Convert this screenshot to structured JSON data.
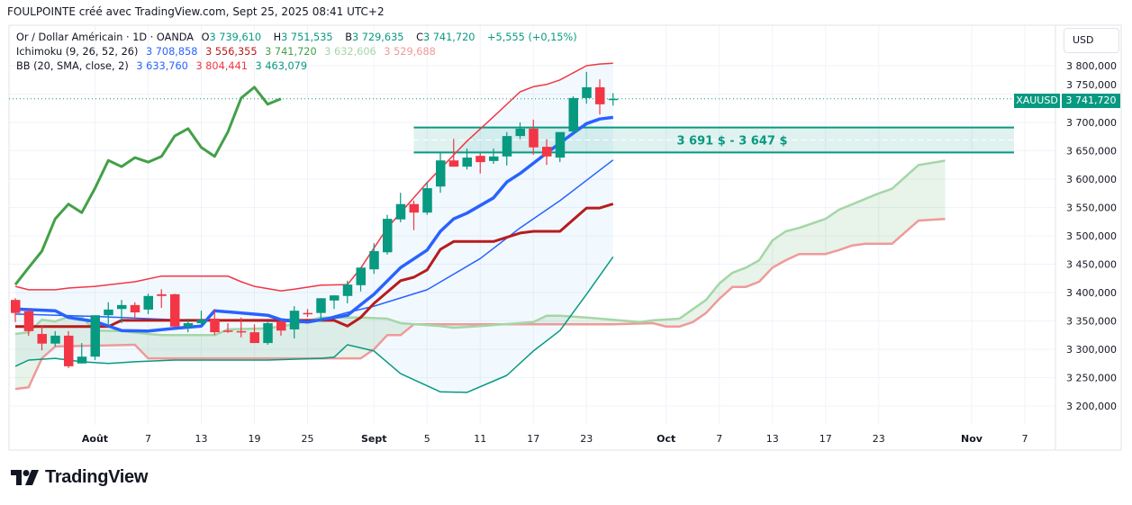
{
  "header": {
    "title": "FOULPOINTE créé avec TradingView.com, Sept 25, 2025 08:41 UTC+2"
  },
  "legend": {
    "symbol": "Or / Dollar Américain · 1D · OANDA",
    "open_label": "O",
    "open": "3 739,610",
    "high_label": "H",
    "high": "3 751,535",
    "low_label": "B",
    "low": "3 729,635",
    "close_label": "C",
    "close": "3 741,720",
    "change": "+5,555 (+0,15%)",
    "ichimoku": {
      "name": "Ichimoku (9, 26, 52, 26)",
      "values": [
        "3 708,858",
        "3 556,355",
        "3 741,720",
        "3 632,606",
        "3 529,688"
      ]
    },
    "bb": {
      "name": "BB (20, SMA, close, 2)",
      "values": [
        "3 633,760",
        "3 804,441",
        "3 463,079"
      ]
    }
  },
  "price_axis": {
    "currency_button": "USD",
    "labels": [
      "3 800,000",
      "3 750,000",
      "3 700,000",
      "3 650,000",
      "3 600,000",
      "3 550,000",
      "3 500,000",
      "3 450,000",
      "3 400,000",
      "3 350,000",
      "3 300,000",
      "3 250,000",
      "3 200,000"
    ],
    "symbol_tag": "XAUUSD",
    "last_price": "3 741,720"
  },
  "zone": {
    "label": "3 691 $ - 3 647 $",
    "top": 3691,
    "bottom": 3647,
    "start": "2025-09-04"
  },
  "footer": {
    "logo": "TradingView"
  },
  "colors": {
    "up": "#089981",
    "down": "#f23645",
    "tenkan": "#2962ff",
    "kijun": "#b71c1c",
    "chikou": "#43a047",
    "span_a": "#a5d6a7",
    "span_b": "#ef9a9a",
    "bb_upper": "#f23645",
    "bb_basis": "#2962ff",
    "bb_lower": "#089981",
    "zone": "#089981"
  },
  "chart_data": {
    "type": "candlestick",
    "symbol": "XAUUSD",
    "interval": "1D",
    "ylim": [
      3175,
      3830
    ],
    "yticks": [
      3800,
      3750,
      3700,
      3650,
      3600,
      3550,
      3500,
      3450,
      3400,
      3350,
      3300,
      3250,
      3200
    ],
    "last_price": 3741.72,
    "xticks": [
      {
        "date": "2025-08-01",
        "label": "Août",
        "month": true
      },
      {
        "date": "2025-08-07",
        "label": "7"
      },
      {
        "date": "2025-08-13",
        "label": "13"
      },
      {
        "date": "2025-08-19",
        "label": "19"
      },
      {
        "date": "2025-08-25",
        "label": "25"
      },
      {
        "date": "2025-09-01",
        "label": "Sept",
        "month": true
      },
      {
        "date": "2025-09-05",
        "label": "5"
      },
      {
        "date": "2025-09-11",
        "label": "11"
      },
      {
        "date": "2025-09-17",
        "label": "17"
      },
      {
        "date": "2025-09-23",
        "label": "23"
      },
      {
        "date": "2025-10-01",
        "label": "Oct",
        "month": true
      },
      {
        "date": "2025-10-07",
        "label": "7"
      },
      {
        "date": "2025-10-13",
        "label": "13"
      },
      {
        "date": "2025-10-17",
        "label": "17"
      },
      {
        "date": "2025-10-23",
        "label": "23"
      },
      {
        "date": "2025-11-03",
        "label": "Nov",
        "month": true
      },
      {
        "date": "2025-11-07",
        "label": "7"
      }
    ],
    "candles": [
      [
        "2025-07-24",
        3387,
        3390,
        3348,
        3364
      ],
      [
        "2025-07-25",
        3367,
        3371,
        3324,
        3332
      ],
      [
        "2025-07-28",
        3327,
        3341,
        3298,
        3310
      ],
      [
        "2025-07-29",
        3310,
        3332,
        3305,
        3324
      ],
      [
        "2025-07-30",
        3324,
        3332,
        3267,
        3270
      ],
      [
        "2025-07-31",
        3275,
        3311,
        3275,
        3287
      ],
      [
        "2025-08-01",
        3287,
        3360,
        3281,
        3360
      ],
      [
        "2025-08-04",
        3360,
        3383,
        3341,
        3370
      ],
      [
        "2025-08-05",
        3371,
        3387,
        3346,
        3378
      ],
      [
        "2025-08-06",
        3378,
        3383,
        3356,
        3365
      ],
      [
        "2025-08-07",
        3370,
        3398,
        3362,
        3394
      ],
      [
        "2025-08-08",
        3397,
        3406,
        3373,
        3394
      ],
      [
        "2025-08-11",
        3397,
        3398,
        3340,
        3340
      ],
      [
        "2025-08-12",
        3340,
        3354,
        3330,
        3346
      ],
      [
        "2025-08-13",
        3346,
        3368,
        3344,
        3352
      ],
      [
        "2025-08-14",
        3354,
        3371,
        3325,
        3330
      ],
      [
        "2025-08-15",
        3333,
        3346,
        3329,
        3332
      ],
      [
        "2025-08-18",
        3332,
        3356,
        3321,
        3330
      ],
      [
        "2025-08-19",
        3330,
        3344,
        3311,
        3311
      ],
      [
        "2025-08-20",
        3311,
        3348,
        3308,
        3346
      ],
      [
        "2025-08-21",
        3349,
        3351,
        3324,
        3333
      ],
      [
        "2025-08-22",
        3335,
        3376,
        3319,
        3368
      ],
      [
        "2025-08-25",
        3364,
        3371,
        3357,
        3362
      ],
      [
        "2025-08-26",
        3364,
        3390,
        3349,
        3390
      ],
      [
        "2025-08-27",
        3386,
        3395,
        3371,
        3395
      ],
      [
        "2025-08-28",
        3394,
        3421,
        3381,
        3414
      ],
      [
        "2025-08-29",
        3413,
        3444,
        3402,
        3444
      ],
      [
        "2025-09-01",
        3441,
        3487,
        3433,
        3473
      ],
      [
        "2025-09-02",
        3471,
        3537,
        3467,
        3530
      ],
      [
        "2025-09-03",
        3529,
        3576,
        3524,
        3556
      ],
      [
        "2025-09-04",
        3556,
        3562,
        3510,
        3541
      ],
      [
        "2025-09-05",
        3541,
        3595,
        3537,
        3584
      ],
      [
        "2025-09-08",
        3587,
        3646,
        3576,
        3633
      ],
      [
        "2025-09-09",
        3633,
        3671,
        3622,
        3622
      ],
      [
        "2025-09-10",
        3622,
        3654,
        3617,
        3638
      ],
      [
        "2025-09-11",
        3641,
        3646,
        3610,
        3630
      ],
      [
        "2025-09-12",
        3632,
        3654,
        3627,
        3640
      ],
      [
        "2025-09-15",
        3640,
        3683,
        3624,
        3676
      ],
      [
        "2025-09-16",
        3676,
        3700,
        3671,
        3689
      ],
      [
        "2025-09-17",
        3689,
        3705,
        3643,
        3656
      ],
      [
        "2025-09-18",
        3657,
        3670,
        3625,
        3640
      ],
      [
        "2025-09-19",
        3638,
        3683,
        3630,
        3683
      ],
      [
        "2025-09-22",
        3684,
        3746,
        3681,
        3743
      ],
      [
        "2025-09-23",
        3743,
        3789,
        3733,
        3762
      ],
      [
        "2025-09-24",
        3762,
        3776,
        3714,
        3732
      ],
      [
        "2025-09-25",
        3739.61,
        3751.535,
        3729.635,
        3741.72
      ]
    ],
    "bb_upper": [
      [
        "2025-07-24",
        3411
      ],
      [
        "2025-07-25",
        3405
      ],
      [
        "2025-07-29",
        3405
      ],
      [
        "2025-07-30",
        3408
      ],
      [
        "2025-08-01",
        3411
      ],
      [
        "2025-08-06",
        3419
      ],
      [
        "2025-08-08",
        3429
      ],
      [
        "2025-08-15",
        3429
      ],
      [
        "2025-08-18",
        3419
      ],
      [
        "2025-08-19",
        3411
      ],
      [
        "2025-08-21",
        3403
      ],
      [
        "2025-08-22",
        3406
      ],
      [
        "2025-08-26",
        3413
      ],
      [
        "2025-08-28",
        3414
      ],
      [
        "2025-08-29",
        3443
      ],
      [
        "2025-09-02",
        3514
      ],
      [
        "2025-09-05",
        3594
      ],
      [
        "2025-09-10",
        3667
      ],
      [
        "2025-09-12",
        3710
      ],
      [
        "2025-09-16",
        3754
      ],
      [
        "2025-09-17",
        3763
      ],
      [
        "2025-09-18",
        3767
      ],
      [
        "2025-09-19",
        3775
      ],
      [
        "2025-09-23",
        3800
      ],
      [
        "2025-09-24",
        3803
      ],
      [
        "2025-09-25",
        3804.441
      ]
    ],
    "bb_basis": [
      [
        "2025-07-24",
        3362
      ],
      [
        "2025-08-01",
        3358
      ],
      [
        "2025-08-11",
        3352
      ],
      [
        "2025-08-19",
        3350
      ],
      [
        "2025-08-25",
        3348
      ],
      [
        "2025-08-26",
        3352
      ],
      [
        "2025-08-28",
        3365
      ],
      [
        "2025-09-01",
        3376
      ],
      [
        "2025-09-05",
        3405
      ],
      [
        "2025-09-11",
        3460
      ],
      [
        "2025-09-16",
        3514
      ],
      [
        "2025-09-19",
        3562
      ],
      [
        "2025-09-25",
        3633.76
      ]
    ],
    "bb_lower": [
      [
        "2025-07-24",
        3270
      ],
      [
        "2025-07-25",
        3281
      ],
      [
        "2025-07-29",
        3284
      ],
      [
        "2025-07-31",
        3278
      ],
      [
        "2025-08-04",
        3275
      ],
      [
        "2025-08-06",
        3278
      ],
      [
        "2025-08-11",
        3281
      ],
      [
        "2025-08-20",
        3281
      ],
      [
        "2025-08-26",
        3284
      ],
      [
        "2025-08-27",
        3286
      ],
      [
        "2025-08-28",
        3308
      ],
      [
        "2025-09-01",
        3297
      ],
      [
        "2025-09-03",
        3257
      ],
      [
        "2025-09-08",
        3225
      ],
      [
        "2025-09-10",
        3224
      ],
      [
        "2025-09-15",
        3254
      ],
      [
        "2025-09-17",
        3297
      ],
      [
        "2025-09-19",
        3333
      ],
      [
        "2025-09-23",
        3397
      ],
      [
        "2025-09-25",
        3463.079
      ]
    ],
    "tenkan": [
      [
        "2025-07-24",
        3371
      ],
      [
        "2025-07-29",
        3368
      ],
      [
        "2025-07-30",
        3356
      ],
      [
        "2025-08-01",
        3349
      ],
      [
        "2025-08-05",
        3333
      ],
      [
        "2025-08-07",
        3332
      ],
      [
        "2025-08-11",
        3337
      ],
      [
        "2025-08-13",
        3341
      ],
      [
        "2025-08-14",
        3368
      ],
      [
        "2025-08-20",
        3360
      ],
      [
        "2025-08-21",
        3352
      ],
      [
        "2025-08-25",
        3348
      ],
      [
        "2025-08-26",
        3352
      ],
      [
        "2025-08-28",
        3360
      ],
      [
        "2025-09-01",
        3397
      ],
      [
        "2025-09-03",
        3444
      ],
      [
        "2025-09-05",
        3475
      ],
      [
        "2025-09-08",
        3508
      ],
      [
        "2025-09-09",
        3530
      ],
      [
        "2025-09-10",
        3540
      ],
      [
        "2025-09-12",
        3567
      ],
      [
        "2025-09-15",
        3595
      ],
      [
        "2025-09-16",
        3610
      ],
      [
        "2025-09-18",
        3646
      ],
      [
        "2025-09-22",
        3681
      ],
      [
        "2025-09-23",
        3698
      ],
      [
        "2025-09-24",
        3706
      ],
      [
        "2025-09-25",
        3708.858
      ]
    ],
    "kijun": [
      [
        "2025-07-24",
        3340
      ],
      [
        "2025-08-04",
        3340
      ],
      [
        "2025-08-05",
        3351
      ],
      [
        "2025-08-27",
        3351
      ],
      [
        "2025-08-28",
        3341
      ],
      [
        "2025-08-29",
        3356
      ],
      [
        "2025-09-01",
        3381
      ],
      [
        "2025-09-03",
        3421
      ],
      [
        "2025-09-04",
        3427
      ],
      [
        "2025-09-05",
        3440
      ],
      [
        "2025-09-08",
        3476
      ],
      [
        "2025-09-09",
        3490
      ],
      [
        "2025-09-12",
        3490
      ],
      [
        "2025-09-16",
        3505
      ],
      [
        "2025-09-17",
        3508
      ],
      [
        "2025-09-19",
        3508
      ],
      [
        "2025-09-23",
        3549
      ],
      [
        "2025-09-24",
        3549
      ],
      [
        "2025-09-25",
        3556.355
      ]
    ],
    "span_a": [
      [
        "2025-07-24",
        3327
      ],
      [
        "2025-07-25",
        3330
      ],
      [
        "2025-07-28",
        3352
      ],
      [
        "2025-07-29",
        3349
      ],
      [
        "2025-07-30",
        3357
      ],
      [
        "2025-07-31",
        3357
      ],
      [
        "2025-08-01",
        3333
      ],
      [
        "2025-08-05",
        3332
      ],
      [
        "2025-08-07",
        3327
      ],
      [
        "2025-08-08",
        3325
      ],
      [
        "2025-08-14",
        3325
      ],
      [
        "2025-08-15",
        3335
      ],
      [
        "2025-08-20",
        3337
      ],
      [
        "2025-08-22",
        3344
      ],
      [
        "2025-08-26",
        3356
      ],
      [
        "2025-08-29",
        3356
      ],
      [
        "2025-09-02",
        3354
      ],
      [
        "2025-09-03",
        3346
      ],
      [
        "2025-09-08",
        3341
      ],
      [
        "2025-09-09",
        3338
      ],
      [
        "2025-09-11",
        3341
      ],
      [
        "2025-09-17",
        3348
      ],
      [
        "2025-09-18",
        3359
      ],
      [
        "2025-09-19",
        3359
      ],
      [
        "2025-09-23",
        3356
      ],
      [
        "2025-09-25",
        3352
      ],
      [
        "2025-09-29",
        3348
      ],
      [
        "2025-09-30",
        3351
      ],
      [
        "2025-10-02",
        3354
      ],
      [
        "2025-10-06",
        3387
      ],
      [
        "2025-10-07",
        3416
      ],
      [
        "2025-10-08",
        3435
      ],
      [
        "2025-10-09",
        3444
      ],
      [
        "2025-10-10",
        3457
      ],
      [
        "2025-10-13",
        3492
      ],
      [
        "2025-10-14",
        3508
      ],
      [
        "2025-10-15",
        3514
      ],
      [
        "2025-10-17",
        3530
      ],
      [
        "2025-10-20",
        3546
      ],
      [
        "2025-10-23",
        3575
      ],
      [
        "2025-10-24",
        3583
      ],
      [
        "2025-10-28",
        3625
      ],
      [
        "2025-10-30",
        3632.606
      ]
    ],
    "span_b": [
      [
        "2025-07-24",
        3230
      ],
      [
        "2025-07-25",
        3233
      ],
      [
        "2025-07-28",
        3284
      ],
      [
        "2025-07-29",
        3305
      ],
      [
        "2025-08-06",
        3308
      ],
      [
        "2025-08-07",
        3284
      ],
      [
        "2025-08-29",
        3284
      ],
      [
        "2025-09-01",
        3300
      ],
      [
        "2025-09-02",
        3325
      ],
      [
        "2025-09-03",
        3325
      ],
      [
        "2025-09-04",
        3344
      ],
      [
        "2025-09-25",
        3344
      ],
      [
        "2025-09-30",
        3346
      ],
      [
        "2025-10-01",
        3340
      ],
      [
        "2025-10-02",
        3340
      ],
      [
        "2025-10-03",
        3348
      ],
      [
        "2025-10-06",
        3364
      ],
      [
        "2025-10-07",
        3389
      ],
      [
        "2025-10-08",
        3410
      ],
      [
        "2025-10-09",
        3410
      ],
      [
        "2025-10-10",
        3419
      ],
      [
        "2025-10-13",
        3444
      ],
      [
        "2025-10-14",
        3457
      ],
      [
        "2025-10-15",
        3468
      ],
      [
        "2025-10-17",
        3468
      ],
      [
        "2025-10-20",
        3475
      ],
      [
        "2025-10-21",
        3483
      ],
      [
        "2025-10-22",
        3486
      ],
      [
        "2025-10-24",
        3486
      ],
      [
        "2025-10-28",
        3527
      ],
      [
        "2025-10-30",
        3529.688
      ]
    ],
    "chikou_displacement_bars": 25
  }
}
